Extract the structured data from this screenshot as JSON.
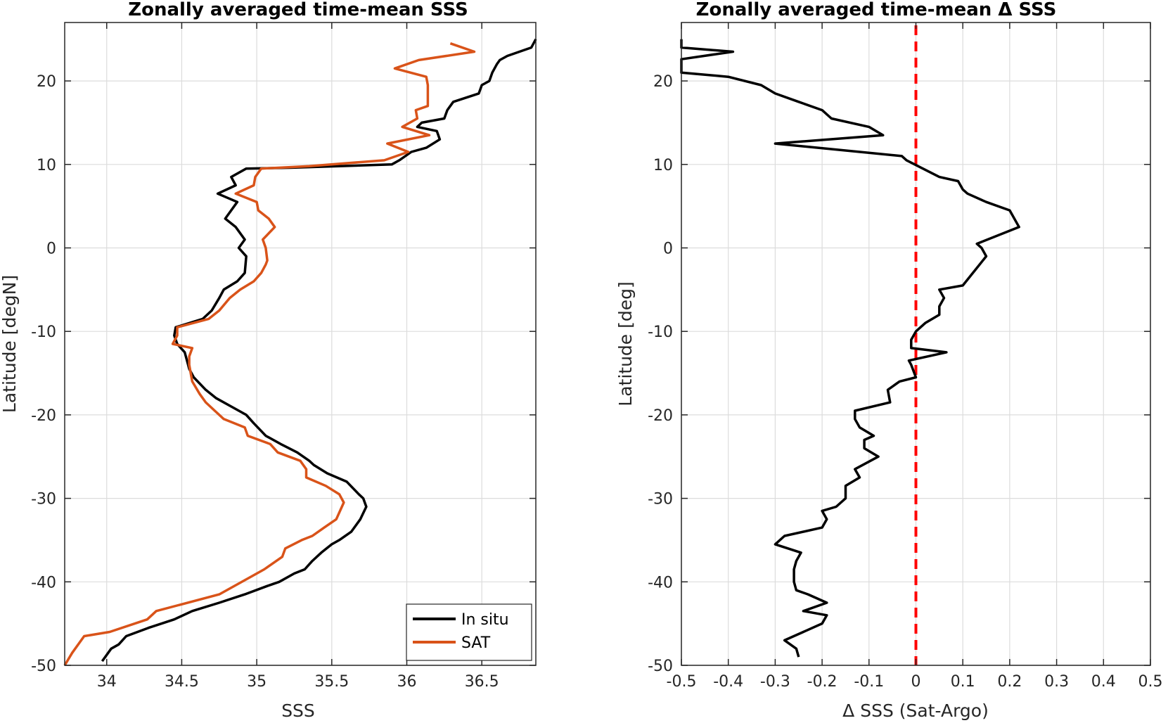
{
  "colors": {
    "in_situ": "#000000",
    "sat": "#D95319",
    "delta": "#000000",
    "zero_line": "#FF0000"
  },
  "chart_data": [
    {
      "type": "line",
      "title": "Zonally averaged time-mean SSS",
      "xlabel": "SSS",
      "ylabel": "Latitude [degN]",
      "xlim": [
        33.72,
        36.86
      ],
      "ylim": [
        -50,
        27
      ],
      "xticks": [
        34,
        34.5,
        35,
        35.5,
        36,
        36.5
      ],
      "xtick_labels": [
        "34",
        "34.5",
        "35",
        "35.5",
        "36",
        "36.5"
      ],
      "yticks": [
        -50,
        -40,
        -30,
        -20,
        -10,
        0,
        10,
        20
      ],
      "ytick_labels": [
        "-50",
        "-40",
        "-30",
        "-20",
        "-10",
        "0",
        "10",
        "20"
      ],
      "grid": true,
      "legend": {
        "placement": "bottom-right",
        "entries": [
          "In situ",
          "SAT"
        ]
      },
      "series": [
        {
          "name": "In situ",
          "color": "#000000",
          "points": [
            [
              33.97,
              -49.5
            ],
            [
              34.03,
              -48
            ],
            [
              34.08,
              -47.5
            ],
            [
              34.13,
              -46.5
            ],
            [
              34.28,
              -45.5
            ],
            [
              34.45,
              -44.5
            ],
            [
              34.57,
              -43.5
            ],
            [
              34.75,
              -42.5
            ],
            [
              34.92,
              -41.5
            ],
            [
              35.07,
              -40.5
            ],
            [
              35.15,
              -40
            ],
            [
              35.25,
              -39
            ],
            [
              35.32,
              -38.5
            ],
            [
              35.37,
              -37.5
            ],
            [
              35.43,
              -36.5
            ],
            [
              35.5,
              -35.5
            ],
            [
              35.55,
              -35
            ],
            [
              35.63,
              -34
            ],
            [
              35.69,
              -32.5
            ],
            [
              35.73,
              -31
            ],
            [
              35.71,
              -30
            ],
            [
              35.68,
              -29.5
            ],
            [
              35.6,
              -28
            ],
            [
              35.47,
              -27
            ],
            [
              35.38,
              -26
            ],
            [
              35.35,
              -25.5
            ],
            [
              35.27,
              -24.5
            ],
            [
              35.16,
              -23.5
            ],
            [
              35.06,
              -22.5
            ],
            [
              34.98,
              -21
            ],
            [
              34.93,
              -20
            ],
            [
              34.83,
              -19
            ],
            [
              34.73,
              -18
            ],
            [
              34.66,
              -17
            ],
            [
              34.58,
              -15.5
            ],
            [
              34.55,
              -14.5
            ],
            [
              34.52,
              -12.5
            ],
            [
              34.47,
              -11.5
            ],
            [
              34.45,
              -10.5
            ],
            [
              34.46,
              -9.5
            ],
            [
              34.64,
              -8.5
            ],
            [
              34.7,
              -7.5
            ],
            [
              34.75,
              -6
            ],
            [
              34.78,
              -5
            ],
            [
              34.87,
              -4
            ],
            [
              34.92,
              -3
            ],
            [
              34.93,
              -1
            ],
            [
              34.88,
              0
            ],
            [
              34.92,
              1
            ],
            [
              34.86,
              2.5
            ],
            [
              34.79,
              3.5
            ],
            [
              34.87,
              5.5
            ],
            [
              34.74,
              6.5
            ],
            [
              34.86,
              7.5
            ],
            [
              34.83,
              8.5
            ],
            [
              34.93,
              9.5
            ],
            [
              35.22,
              9.6
            ],
            [
              35.9,
              10
            ],
            [
              35.95,
              10.5
            ],
            [
              36.03,
              11.5
            ],
            [
              36.13,
              12
            ],
            [
              36.22,
              13
            ],
            [
              36.2,
              14
            ],
            [
              36.07,
              14.5
            ],
            [
              36.1,
              15
            ],
            [
              36.25,
              15.5
            ],
            [
              36.27,
              16.5
            ],
            [
              36.31,
              17.5
            ],
            [
              36.48,
              18.5
            ],
            [
              36.5,
              19.5
            ],
            [
              36.55,
              20
            ],
            [
              36.57,
              21
            ],
            [
              36.6,
              22
            ],
            [
              36.62,
              22.5
            ],
            [
              36.67,
              23
            ],
            [
              36.83,
              24
            ],
            [
              36.86,
              25
            ]
          ]
        },
        {
          "name": "SAT",
          "color": "#D95319",
          "points": [
            [
              33.72,
              -50
            ],
            [
              33.77,
              -48.5
            ],
            [
              33.85,
              -46.5
            ],
            [
              34.02,
              -46
            ],
            [
              34.27,
              -44.5
            ],
            [
              34.33,
              -43.5
            ],
            [
              34.75,
              -41.5
            ],
            [
              34.95,
              -39.5
            ],
            [
              35.05,
              -38.5
            ],
            [
              35.17,
              -37
            ],
            [
              35.19,
              -36
            ],
            [
              35.3,
              -35
            ],
            [
              35.37,
              -34.5
            ],
            [
              35.45,
              -33.5
            ],
            [
              35.53,
              -32.5
            ],
            [
              35.58,
              -30.5
            ],
            [
              35.55,
              -29.5
            ],
            [
              35.46,
              -28.5
            ],
            [
              35.33,
              -27.5
            ],
            [
              35.33,
              -26.5
            ],
            [
              35.29,
              -25.5
            ],
            [
              35.14,
              -24.5
            ],
            [
              35.09,
              -23.5
            ],
            [
              34.94,
              -22.5
            ],
            [
              34.92,
              -21.5
            ],
            [
              34.78,
              -20.5
            ],
            [
              34.72,
              -19.5
            ],
            [
              34.66,
              -18.5
            ],
            [
              34.62,
              -17.5
            ],
            [
              34.57,
              -16
            ],
            [
              34.56,
              -15
            ],
            [
              34.55,
              -14
            ],
            [
              34.55,
              -13
            ],
            [
              34.57,
              -12
            ],
            [
              34.44,
              -11.5
            ],
            [
              34.47,
              -10.5
            ],
            [
              34.47,
              -9.5
            ],
            [
              34.68,
              -8.5
            ],
            [
              34.75,
              -7.5
            ],
            [
              34.82,
              -6
            ],
            [
              34.89,
              -5
            ],
            [
              34.98,
              -4
            ],
            [
              35.03,
              -3
            ],
            [
              35.06,
              -2
            ],
            [
              35.07,
              -1.5
            ],
            [
              35.06,
              0
            ],
            [
              35.04,
              1
            ],
            [
              35.12,
              2.5
            ],
            [
              35.08,
              3.5
            ],
            [
              35.01,
              4.5
            ],
            [
              35.0,
              5.5
            ],
            [
              34.86,
              6.5
            ],
            [
              34.98,
              7.5
            ],
            [
              34.99,
              8.5
            ],
            [
              35.03,
              9.5
            ],
            [
              35.35,
              9.8
            ],
            [
              35.85,
              10.5
            ],
            [
              36.01,
              11.5
            ],
            [
              35.87,
              12.5
            ],
            [
              36.15,
              13.5
            ],
            [
              35.97,
              14.5
            ],
            [
              36.07,
              15.5
            ],
            [
              36.06,
              16.5
            ],
            [
              36.14,
              17
            ],
            [
              36.14,
              18.5
            ],
            [
              36.14,
              19.5
            ],
            [
              36.13,
              20.5
            ],
            [
              35.92,
              21.5
            ],
            [
              36.08,
              22.5
            ],
            [
              36.45,
              23.5
            ],
            [
              36.29,
              24.5
            ]
          ]
        }
      ]
    },
    {
      "type": "line",
      "title": "Zonally averaged time-mean Δ SSS",
      "xlabel": "Δ SSS (Sat-Argo)",
      "ylabel": "Latitude [deg]",
      "xlim": [
        -0.5,
        0.5
      ],
      "ylim": [
        -50,
        27
      ],
      "xticks": [
        -0.5,
        -0.4,
        -0.3,
        -0.2,
        -0.1,
        0,
        0.1,
        0.2,
        0.3,
        0.4,
        0.5
      ],
      "xtick_labels": [
        "-0.5",
        "-0.4",
        "-0.3",
        "-0.2",
        "-0.1",
        "0",
        "0.1",
        "0.2",
        "0.3",
        "0.4",
        "0.5"
      ],
      "yticks": [
        -50,
        -40,
        -30,
        -20,
        -10,
        0,
        10,
        20
      ],
      "ytick_labels": [
        "-50",
        "-40",
        "-30",
        "-20",
        "-10",
        "0",
        "10",
        "20"
      ],
      "grid": true,
      "reference_line": {
        "x": 0,
        "style": "dashed",
        "color": "#FF0000"
      },
      "series": [
        {
          "color": "#000000",
          "points": [
            [
              -0.25,
              -49
            ],
            [
              -0.255,
              -48
            ],
            [
              -0.28,
              -47
            ],
            [
              -0.2,
              -45
            ],
            [
              -0.19,
              -44
            ],
            [
              -0.24,
              -43.5
            ],
            [
              -0.19,
              -42.5
            ],
            [
              -0.23,
              -41.5
            ],
            [
              -0.255,
              -41
            ],
            [
              -0.26,
              -40
            ],
            [
              -0.26,
              -38.5
            ],
            [
              -0.255,
              -37.5
            ],
            [
              -0.245,
              -36.5
            ],
            [
              -0.3,
              -35.5
            ],
            [
              -0.28,
              -34.5
            ],
            [
              -0.2,
              -33.5
            ],
            [
              -0.19,
              -32.5
            ],
            [
              -0.2,
              -31.5
            ],
            [
              -0.17,
              -31
            ],
            [
              -0.15,
              -30
            ],
            [
              -0.15,
              -28.5
            ],
            [
              -0.12,
              -27.5
            ],
            [
              -0.13,
              -26.5
            ],
            [
              -0.08,
              -25
            ],
            [
              -0.11,
              -24
            ],
            [
              -0.11,
              -23
            ],
            [
              -0.09,
              -22.5
            ],
            [
              -0.12,
              -21.5
            ],
            [
              -0.13,
              -20.5
            ],
            [
              -0.13,
              -19.5
            ],
            [
              -0.055,
              -18.5
            ],
            [
              -0.06,
              -17
            ],
            [
              -0.035,
              -16
            ],
            [
              0.0,
              -15.5
            ],
            [
              -0.01,
              -14
            ],
            [
              -0.015,
              -13.5
            ],
            [
              0.065,
              -12.5
            ],
            [
              -0.01,
              -12
            ],
            [
              -0.01,
              -11
            ],
            [
              0.0,
              -10
            ],
            [
              0.02,
              -9
            ],
            [
              0.05,
              -8
            ],
            [
              0.05,
              -7
            ],
            [
              0.06,
              -6
            ],
            [
              0.05,
              -5
            ],
            [
              0.1,
              -4.5
            ],
            [
              0.15,
              -1
            ],
            [
              0.14,
              0
            ],
            [
              0.13,
              0.5
            ],
            [
              0.22,
              2.5
            ],
            [
              0.2,
              4.5
            ],
            [
              0.15,
              5.5
            ],
            [
              0.11,
              6.5
            ],
            [
              0.1,
              7
            ],
            [
              0.09,
              8
            ],
            [
              0.05,
              8.5
            ],
            [
              -0.02,
              10.5
            ],
            [
              -0.03,
              11
            ],
            [
              -0.3,
              12.5
            ],
            [
              -0.07,
              13.5
            ],
            [
              -0.1,
              14.5
            ],
            [
              -0.18,
              15.5
            ],
            [
              -0.2,
              16.5
            ],
            [
              -0.25,
              17.5
            ],
            [
              -0.3,
              18.5
            ],
            [
              -0.33,
              19.5
            ],
            [
              -0.4,
              20.5
            ],
            [
              -0.5,
              21
            ],
            [
              -0.5,
              21.5
            ],
            [
              -0.5,
              22.6
            ],
            [
              -0.39,
              23.5
            ],
            [
              -0.5,
              24
            ],
            [
              -0.5,
              25
            ]
          ]
        }
      ]
    }
  ]
}
